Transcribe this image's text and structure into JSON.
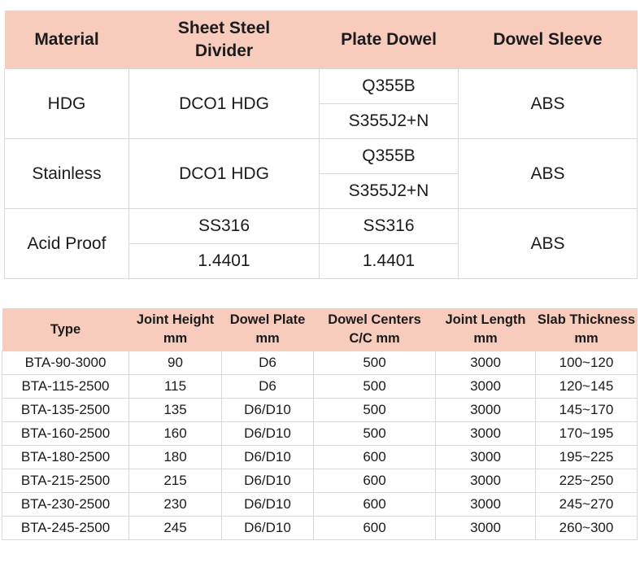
{
  "colors": {
    "header_bg": "#f8ccbc",
    "border": "#d9d9d9",
    "text": "#1b1b1b"
  },
  "material_table": {
    "headers": [
      [
        "Material"
      ],
      [
        "Sheet Steel",
        "Divider"
      ],
      [
        "Plate Dowel"
      ],
      [
        "Dowel Sleeve"
      ]
    ],
    "rows": [
      {
        "material": "HDG",
        "divider": [
          "DCO1 HDG"
        ],
        "plate_dowel": [
          "Q355B",
          "S355J2+N"
        ],
        "sleeve": "ABS"
      },
      {
        "material": "Stainless",
        "divider": [
          "DCO1 HDG"
        ],
        "plate_dowel": [
          "Q355B",
          "S355J2+N"
        ],
        "sleeve": "ABS"
      },
      {
        "material": "Acid Proof",
        "divider": [
          "SS316",
          "1.4401"
        ],
        "plate_dowel": [
          "SS316",
          "1.4401"
        ],
        "sleeve": "ABS"
      }
    ]
  },
  "spec_table": {
    "headers": [
      [
        "Type"
      ],
      [
        "Joint Height",
        "mm"
      ],
      [
        "Dowel Plate",
        "mm"
      ],
      [
        "Dowel Centers",
        "C/C mm"
      ],
      [
        "Joint Length",
        "mm"
      ],
      [
        "Slab Thickness",
        "mm"
      ]
    ],
    "rows": [
      [
        "BTA-90-3000",
        "90",
        "D6",
        "500",
        "3000",
        "100~120"
      ],
      [
        "BTA-115-2500",
        "115",
        "D6",
        "500",
        "3000",
        "120~145"
      ],
      [
        "BTA-135-2500",
        "135",
        "D6/D10",
        "500",
        "3000",
        "145~170"
      ],
      [
        "BTA-160-2500",
        "160",
        "D6/D10",
        "500",
        "3000",
        "170~195"
      ],
      [
        "BTA-180-2500",
        "180",
        "D6/D10",
        "600",
        "3000",
        "195~225"
      ],
      [
        "BTA-215-2500",
        "215",
        "D6/D10",
        "600",
        "3000",
        "225~250"
      ],
      [
        "BTA-230-2500",
        "230",
        "D6/D10",
        "600",
        "3000",
        "245~270"
      ],
      [
        "BTA-245-2500",
        "245",
        "D6/D10",
        "600",
        "3000",
        "260~300"
      ]
    ]
  }
}
